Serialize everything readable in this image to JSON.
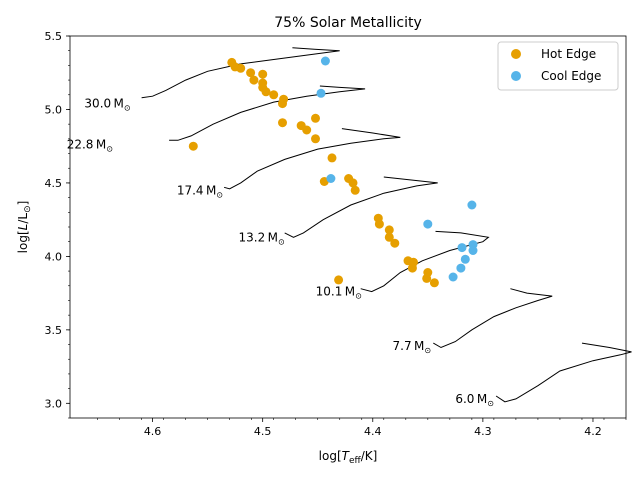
{
  "chart_data": {
    "type": "scatter",
    "title": "75% Solar Metallicity",
    "xlabel_parts": [
      "log[",
      "T",
      "eff",
      "/K]"
    ],
    "ylabel_parts": [
      "log[",
      "L",
      "/L",
      "⊙",
      "]"
    ],
    "xlim": [
      4.675,
      4.17
    ],
    "ylim": [
      2.9,
      5.5
    ],
    "x_ticks": [
      4.6,
      4.5,
      4.4,
      4.3,
      4.2
    ],
    "x_tick_labels": [
      "4.6",
      "4.5",
      "4.4",
      "4.3",
      "4.2"
    ],
    "y_ticks": [
      3.0,
      3.5,
      4.0,
      4.5,
      5.0,
      5.5
    ],
    "y_tick_labels": [
      "3.0",
      "3.5",
      "4.0",
      "4.5",
      "5.0",
      "5.5"
    ],
    "legend_position": "top-right",
    "series": [
      {
        "name": "Hot Edge",
        "color": "#e69f00",
        "points": [
          [
            4.528,
            5.32
          ],
          [
            4.525,
            5.29
          ],
          [
            4.52,
            5.28
          ],
          [
            4.511,
            5.25
          ],
          [
            4.5,
            5.24
          ],
          [
            4.508,
            5.2
          ],
          [
            4.5,
            5.18
          ],
          [
            4.5,
            5.15
          ],
          [
            4.497,
            5.12
          ],
          [
            4.49,
            5.1
          ],
          [
            4.481,
            5.07
          ],
          [
            4.482,
            5.04
          ],
          [
            4.452,
            4.94
          ],
          [
            4.465,
            4.89
          ],
          [
            4.46,
            4.86
          ],
          [
            4.452,
            4.8
          ],
          [
            4.482,
            4.91
          ],
          [
            4.563,
            4.75
          ],
          [
            4.437,
            4.67
          ],
          [
            4.422,
            4.53
          ],
          [
            4.418,
            4.5
          ],
          [
            4.416,
            4.45
          ],
          [
            4.444,
            4.51
          ],
          [
            4.395,
            4.26
          ],
          [
            4.394,
            4.22
          ],
          [
            4.385,
            4.18
          ],
          [
            4.385,
            4.13
          ],
          [
            4.38,
            4.09
          ],
          [
            4.368,
            3.97
          ],
          [
            4.363,
            3.96
          ],
          [
            4.364,
            3.92
          ],
          [
            4.35,
            3.89
          ],
          [
            4.351,
            3.85
          ],
          [
            4.344,
            3.82
          ],
          [
            4.431,
            3.84
          ]
        ]
      },
      {
        "name": "Cool Edge",
        "color": "#56b4e9",
        "points": [
          [
            4.443,
            5.33
          ],
          [
            4.447,
            5.11
          ],
          [
            4.438,
            4.53
          ],
          [
            4.35,
            4.22
          ],
          [
            4.31,
            4.35
          ],
          [
            4.319,
            4.06
          ],
          [
            4.309,
            4.08
          ],
          [
            4.309,
            4.04
          ],
          [
            4.316,
            3.98
          ],
          [
            4.32,
            3.92
          ],
          [
            4.327,
            3.86
          ]
        ]
      }
    ],
    "tracks": [
      {
        "label": "30.0",
        "label_pos": [
          4.62,
          5.04
        ],
        "points": [
          [
            4.61,
            5.08
          ],
          [
            4.6,
            5.09
          ],
          [
            4.588,
            5.13
          ],
          [
            4.57,
            5.2
          ],
          [
            4.55,
            5.26
          ],
          [
            4.52,
            5.31
          ],
          [
            4.49,
            5.34
          ],
          [
            4.46,
            5.37
          ],
          [
            4.43,
            5.4
          ],
          [
            4.453,
            5.41
          ],
          [
            4.473,
            5.42
          ]
        ]
      },
      {
        "label": "22.8",
        "label_pos": [
          4.636,
          4.76
        ],
        "points": [
          [
            4.585,
            4.79
          ],
          [
            4.577,
            4.79
          ],
          [
            4.565,
            4.82
          ],
          [
            4.545,
            4.9
          ],
          [
            4.52,
            4.98
          ],
          [
            4.49,
            5.05
          ],
          [
            4.46,
            5.09
          ],
          [
            4.43,
            5.12
          ],
          [
            4.407,
            5.14
          ],
          [
            4.43,
            5.15
          ],
          [
            4.448,
            5.16
          ]
        ]
      },
      {
        "label": "17.4",
        "label_pos": [
          4.536,
          4.45
        ],
        "points": [
          [
            4.535,
            4.47
          ],
          [
            4.53,
            4.46
          ],
          [
            4.52,
            4.5
          ],
          [
            4.505,
            4.58
          ],
          [
            4.48,
            4.66
          ],
          [
            4.45,
            4.73
          ],
          [
            4.42,
            4.77
          ],
          [
            4.39,
            4.8
          ],
          [
            4.375,
            4.81
          ],
          [
            4.4,
            4.84
          ],
          [
            4.428,
            4.87
          ]
        ]
      },
      {
        "label": "13.2",
        "label_pos": [
          4.48,
          4.13
        ],
        "points": [
          [
            4.48,
            4.16
          ],
          [
            4.472,
            4.13
          ],
          [
            4.463,
            4.16
          ],
          [
            4.445,
            4.25
          ],
          [
            4.42,
            4.35
          ],
          [
            4.39,
            4.43
          ],
          [
            4.36,
            4.48
          ],
          [
            4.341,
            4.5
          ],
          [
            4.365,
            4.52
          ],
          [
            4.39,
            4.54
          ]
        ]
      },
      {
        "label": "10.1",
        "label_pos": [
          4.41,
          3.76
        ],
        "points": [
          [
            4.411,
            3.78
          ],
          [
            4.401,
            3.76
          ],
          [
            4.39,
            3.8
          ],
          [
            4.375,
            3.89
          ],
          [
            4.355,
            3.97
          ],
          [
            4.33,
            4.04
          ],
          [
            4.3,
            4.1
          ],
          [
            4.295,
            4.13
          ],
          [
            4.32,
            4.16
          ],
          [
            4.343,
            4.17
          ]
        ]
      },
      {
        "label": "7.7",
        "label_pos": [
          4.347,
          3.39
        ],
        "points": [
          [
            4.345,
            3.41
          ],
          [
            4.338,
            3.38
          ],
          [
            4.325,
            3.42
          ],
          [
            4.31,
            3.5
          ],
          [
            4.29,
            3.59
          ],
          [
            4.27,
            3.65
          ],
          [
            4.25,
            3.7
          ],
          [
            4.237,
            3.73
          ],
          [
            4.26,
            3.75
          ],
          [
            4.275,
            3.78
          ]
        ]
      },
      {
        "label": "6.0",
        "label_pos": [
          4.29,
          3.03
        ],
        "points": [
          [
            4.288,
            3.05
          ],
          [
            4.28,
            3.01
          ],
          [
            4.27,
            3.03
          ],
          [
            4.25,
            3.12
          ],
          [
            4.23,
            3.22
          ],
          [
            4.2,
            3.29
          ],
          [
            4.175,
            3.33
          ],
          [
            4.165,
            3.35
          ],
          [
            4.185,
            3.38
          ],
          [
            4.21,
            3.41
          ]
        ]
      }
    ]
  }
}
